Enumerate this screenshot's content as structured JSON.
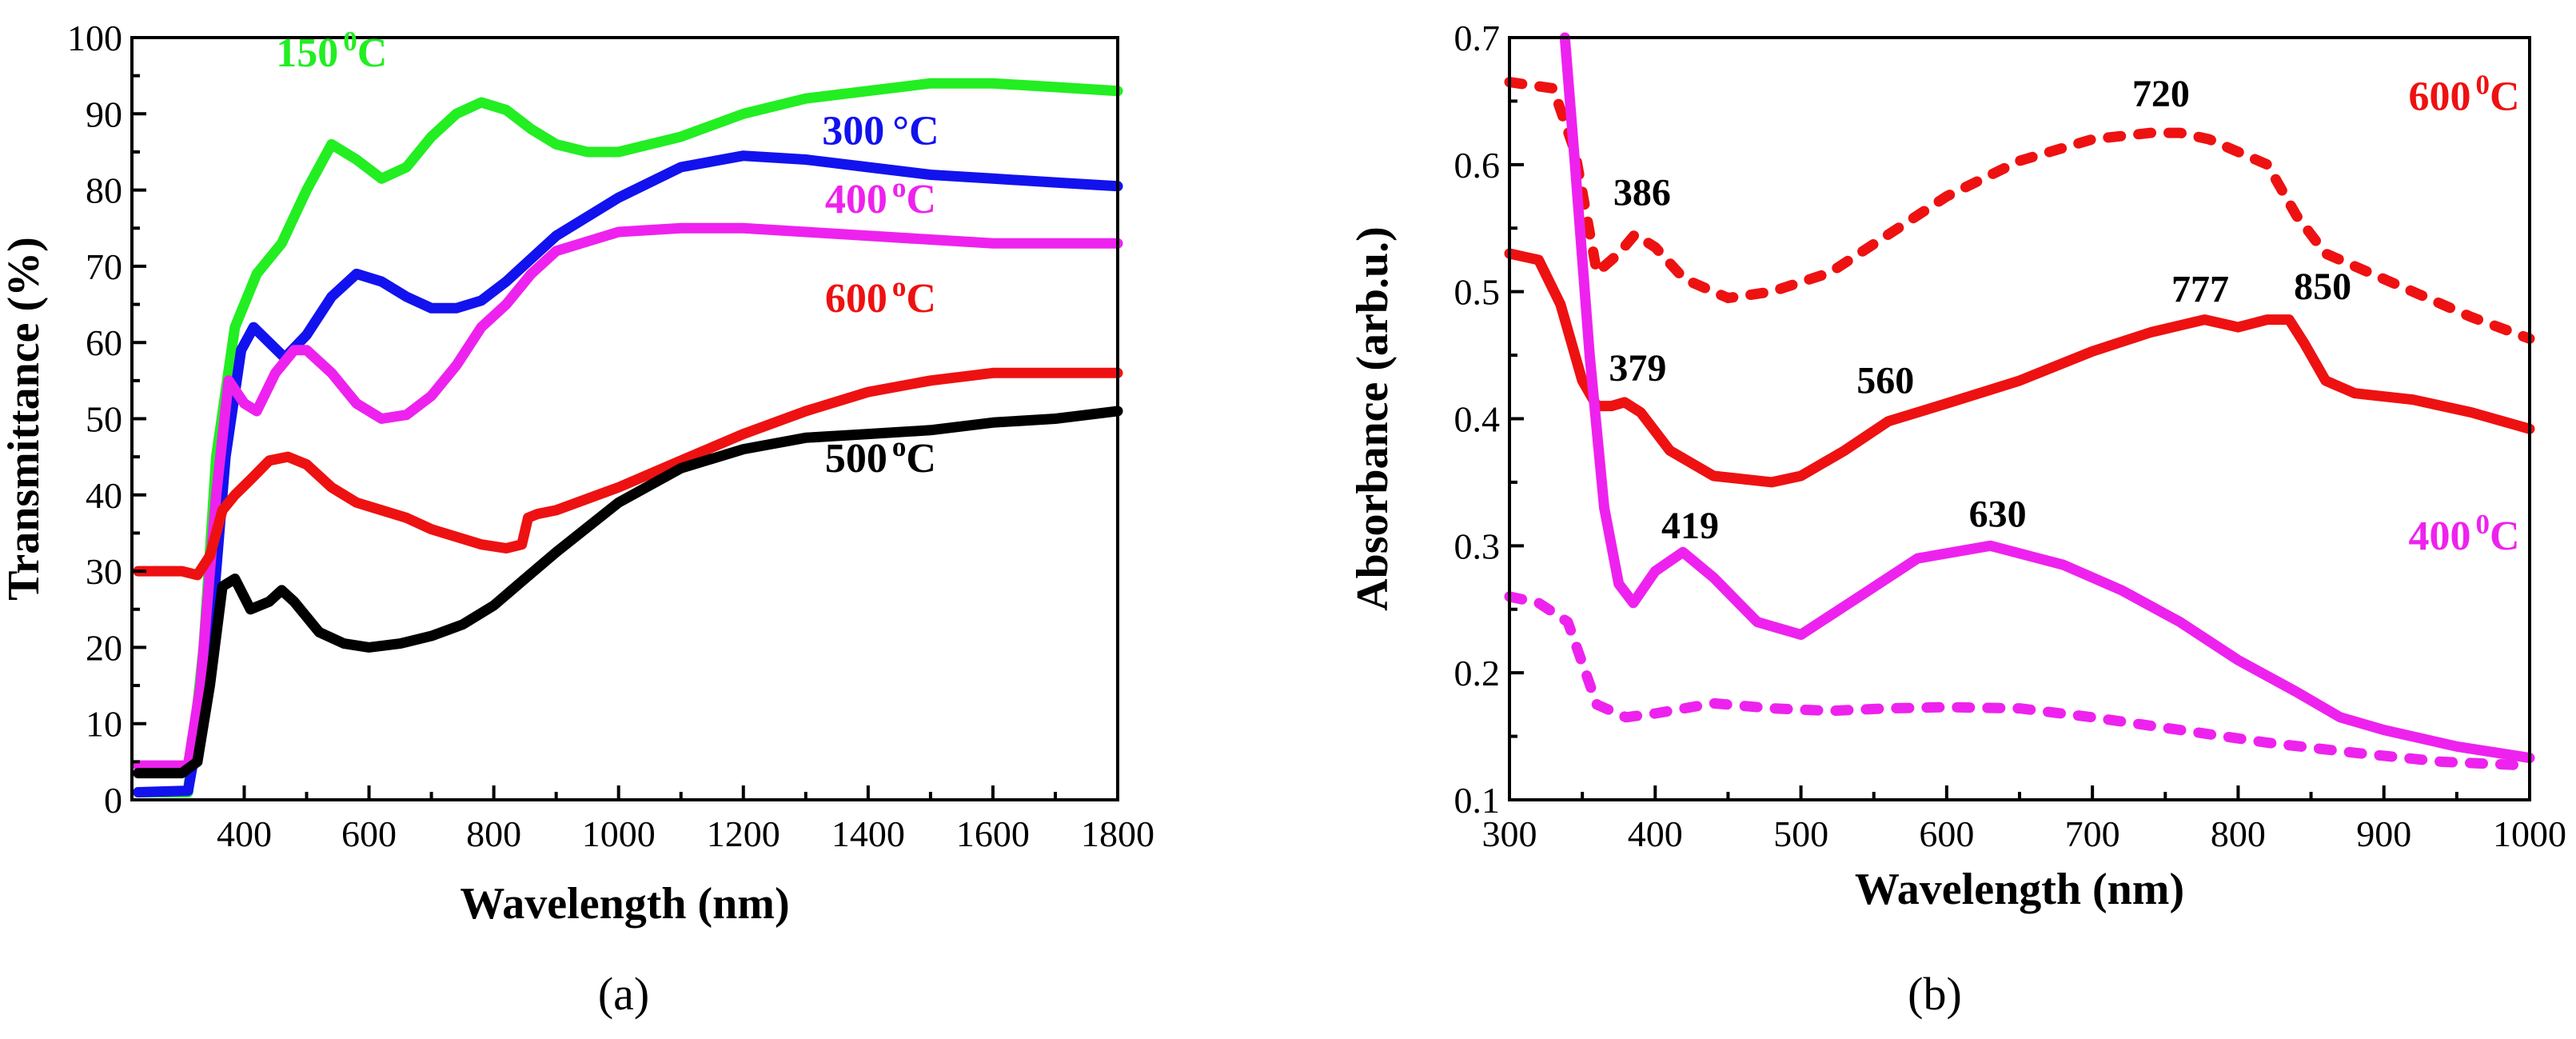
{
  "chart_data": [
    {
      "id": "a",
      "type": "line",
      "panel_label": "(a)",
      "xlabel": "Wavelength (nm)",
      "ylabel": "Transmittance (%)",
      "xlim": [
        220,
        1800
      ],
      "ylim": [
        0,
        100
      ],
      "xticks": [
        400,
        600,
        800,
        1000,
        1200,
        1400,
        1600,
        1800
      ],
      "yticks": [
        0,
        10,
        20,
        30,
        40,
        50,
        60,
        70,
        80,
        90,
        100
      ],
      "series": [
        {
          "name": "150 °C",
          "color": "#22ee22",
          "dashed": false,
          "x": [
            230,
            310,
            335,
            355,
            385,
            420,
            460,
            500,
            540,
            580,
            620,
            660,
            700,
            740,
            780,
            820,
            860,
            900,
            950,
            1000,
            1100,
            1200,
            1300,
            1400,
            1500,
            1600,
            1700,
            1800
          ],
          "y": [
            1,
            1,
            20,
            45,
            62,
            69,
            73,
            80,
            86,
            84,
            81.5,
            83,
            87,
            90,
            91.5,
            90.5,
            88,
            86,
            85,
            85,
            87,
            90,
            92,
            93,
            94,
            94,
            93.5,
            93
          ]
        },
        {
          "name": "300 °C",
          "color": "#1212ee",
          "dashed": false,
          "x": [
            230,
            310,
            340,
            370,
            395,
            415,
            440,
            465,
            500,
            540,
            580,
            620,
            660,
            700,
            740,
            780,
            820,
            860,
            900,
            1000,
            1100,
            1200,
            1300,
            1400,
            1500,
            1600,
            1700,
            1800
          ],
          "y": [
            1,
            1.2,
            15,
            45,
            59,
            62,
            60,
            58,
            61,
            66,
            69,
            68,
            66,
            64.5,
            64.5,
            65.5,
            68,
            71,
            74,
            79,
            83,
            84.5,
            84,
            83,
            82,
            81.5,
            81,
            80.5
          ]
        },
        {
          "name": "400 °C",
          "color": "#ee22ee",
          "dashed": false,
          "x": [
            230,
            310,
            330,
            355,
            375,
            400,
            420,
            450,
            480,
            500,
            540,
            580,
            620,
            660,
            700,
            740,
            780,
            820,
            860,
            900,
            1000,
            1100,
            1200,
            1300,
            1400,
            1500,
            1600,
            1700,
            1800
          ],
          "y": [
            4.5,
            4.5,
            15,
            40,
            55,
            52,
            51,
            56,
            59,
            59,
            56,
            52,
            50,
            50.5,
            53,
            57,
            62,
            65,
            69,
            72,
            74.5,
            75,
            75,
            74.5,
            74,
            73.5,
            73,
            73,
            73
          ]
        },
        {
          "name": "600 °C",
          "color": "#ee1111",
          "dashed": false,
          "x": [
            230,
            300,
            325,
            345,
            365,
            385,
            410,
            440,
            470,
            500,
            540,
            580,
            620,
            660,
            700,
            740,
            780,
            820,
            845,
            855,
            870,
            900,
            1000,
            1100,
            1200,
            1300,
            1400,
            1500,
            1600,
            1700,
            1800
          ],
          "y": [
            30,
            30,
            29.5,
            32,
            38,
            40,
            42,
            44.5,
            45,
            44,
            41,
            39,
            38,
            37,
            35.5,
            34.5,
            33.5,
            33,
            33.5,
            37,
            37.5,
            38,
            41,
            44.5,
            48,
            51,
            53.5,
            55,
            56,
            56,
            56
          ]
        },
        {
          "name": "500 °C",
          "color": "#000000",
          "dashed": false,
          "x": [
            230,
            300,
            325,
            345,
            365,
            385,
            410,
            440,
            460,
            480,
            520,
            560,
            600,
            650,
            700,
            750,
            800,
            850,
            900,
            1000,
            1100,
            1200,
            1300,
            1400,
            1500,
            1600,
            1700,
            1800
          ],
          "y": [
            3.5,
            3.5,
            5,
            15,
            28,
            29,
            25,
            26,
            27.5,
            26,
            22,
            20.5,
            20,
            20.5,
            21.5,
            23,
            25.5,
            29,
            32.5,
            39,
            43.5,
            46,
            47.5,
            48,
            48.5,
            49.5,
            50,
            51
          ]
        }
      ],
      "annotations": [
        {
          "text": "150",
          "sup": "0",
          "unit": "C",
          "color": "#22ee22",
          "x": 540,
          "y": 96.2
        },
        {
          "text": "300",
          "sup": "",
          "unit": "°C",
          "color": "#1212ee",
          "x": 1420,
          "y": 86
        },
        {
          "text": "400",
          "sup": "o",
          "unit": "C",
          "color": "#ee22ee",
          "x": 1420,
          "y": 77
        },
        {
          "text": "600",
          "sup": "o",
          "unit": "C",
          "color": "#ee1111",
          "x": 1420,
          "y": 64
        },
        {
          "text": "500",
          "sup": "o",
          "unit": "C",
          "color": "#000000",
          "x": 1420,
          "y": 43
        }
      ]
    },
    {
      "id": "b",
      "type": "line",
      "panel_label": "(b)",
      "xlabel": "Wavelength (nm)",
      "ylabel": "Absorbance (arb.u.)",
      "xlim": [
        300,
        1000
      ],
      "ylim": [
        0.1,
        0.7
      ],
      "xticks": [
        300,
        400,
        500,
        600,
        700,
        800,
        900,
        1000
      ],
      "yticks": [
        0.1,
        0.2,
        0.3,
        0.4,
        0.5,
        0.6,
        0.7
      ],
      "series": [
        {
          "name": "600 °C dashed",
          "color": "#ee1111",
          "dashed": true,
          "x": [
            300,
            330,
            345,
            360,
            375,
            386,
            400,
            420,
            450,
            480,
            520,
            560,
            600,
            650,
            700,
            740,
            760,
            780,
            800,
            820,
            840,
            860,
            880,
            920,
            960,
            1000
          ],
          "y": [
            0.665,
            0.66,
            0.61,
            0.515,
            0.53,
            0.545,
            0.535,
            0.51,
            0.495,
            0.5,
            0.515,
            0.545,
            0.575,
            0.603,
            0.62,
            0.625,
            0.625,
            0.62,
            0.61,
            0.6,
            0.56,
            0.53,
            0.52,
            0.5,
            0.48,
            0.463
          ]
        },
        {
          "name": "600 °C solid",
          "color": "#ee1111",
          "dashed": false,
          "x": [
            300,
            320,
            335,
            350,
            360,
            370,
            379,
            390,
            410,
            440,
            480,
            500,
            530,
            560,
            600,
            650,
            700,
            740,
            777,
            800,
            820,
            835,
            845,
            860,
            880,
            920,
            960,
            1000
          ],
          "y": [
            0.53,
            0.525,
            0.49,
            0.43,
            0.41,
            0.41,
            0.413,
            0.405,
            0.375,
            0.355,
            0.35,
            0.355,
            0.375,
            0.398,
            0.412,
            0.43,
            0.453,
            0.468,
            0.478,
            0.472,
            0.478,
            0.478,
            0.46,
            0.43,
            0.42,
            0.415,
            0.405,
            0.392
          ]
        },
        {
          "name": "400 °C solid",
          "color": "#ee22ee",
          "dashed": false,
          "x": [
            338,
            345,
            355,
            365,
            375,
            385,
            400,
            419,
            440,
            470,
            500,
            540,
            580,
            630,
            680,
            720,
            760,
            800,
            840,
            870,
            900,
            950,
            1000
          ],
          "y": [
            0.7,
            0.6,
            0.45,
            0.33,
            0.27,
            0.255,
            0.28,
            0.295,
            0.275,
            0.24,
            0.23,
            0.26,
            0.29,
            0.3,
            0.285,
            0.265,
            0.24,
            0.21,
            0.185,
            0.165,
            0.155,
            0.142,
            0.133
          ]
        },
        {
          "name": "400 °C dashed",
          "color": "#ee22ee",
          "dashed": true,
          "x": [
            300,
            320,
            340,
            360,
            380,
            400,
            440,
            480,
            520,
            560,
            600,
            650,
            700,
            760,
            820,
            880,
            940,
            1000
          ],
          "y": [
            0.26,
            0.255,
            0.24,
            0.175,
            0.165,
            0.168,
            0.176,
            0.172,
            0.17,
            0.172,
            0.173,
            0.172,
            0.165,
            0.155,
            0.145,
            0.137,
            0.13,
            0.127
          ]
        }
      ],
      "annotations": [
        {
          "text": "720",
          "sup": "",
          "unit": "",
          "color": "#000000",
          "x": 747,
          "y": 0.646
        },
        {
          "text": "600",
          "sup": "0",
          "unit": "C",
          "color": "#ee1111",
          "x": 955,
          "y": 0.643
        },
        {
          "text": "386",
          "sup": "",
          "unit": "",
          "color": "#000000",
          "x": 391,
          "y": 0.568
        },
        {
          "text": "777",
          "sup": "",
          "unit": "",
          "color": "#000000",
          "x": 774,
          "y": 0.492
        },
        {
          "text": "850",
          "sup": "",
          "unit": "",
          "color": "#000000",
          "x": 858,
          "y": 0.494
        },
        {
          "text": "379",
          "sup": "",
          "unit": "",
          "color": "#000000",
          "x": 388,
          "y": 0.43
        },
        {
          "text": "560",
          "sup": "",
          "unit": "",
          "color": "#000000",
          "x": 558,
          "y": 0.42
        },
        {
          "text": "419",
          "sup": "",
          "unit": "",
          "color": "#000000",
          "x": 424,
          "y": 0.306
        },
        {
          "text": "630",
          "sup": "",
          "unit": "",
          "color": "#000000",
          "x": 635,
          "y": 0.315
        },
        {
          "text": "400",
          "sup": "0",
          "unit": "C",
          "color": "#ee22ee",
          "x": 955,
          "y": 0.297
        }
      ]
    }
  ]
}
